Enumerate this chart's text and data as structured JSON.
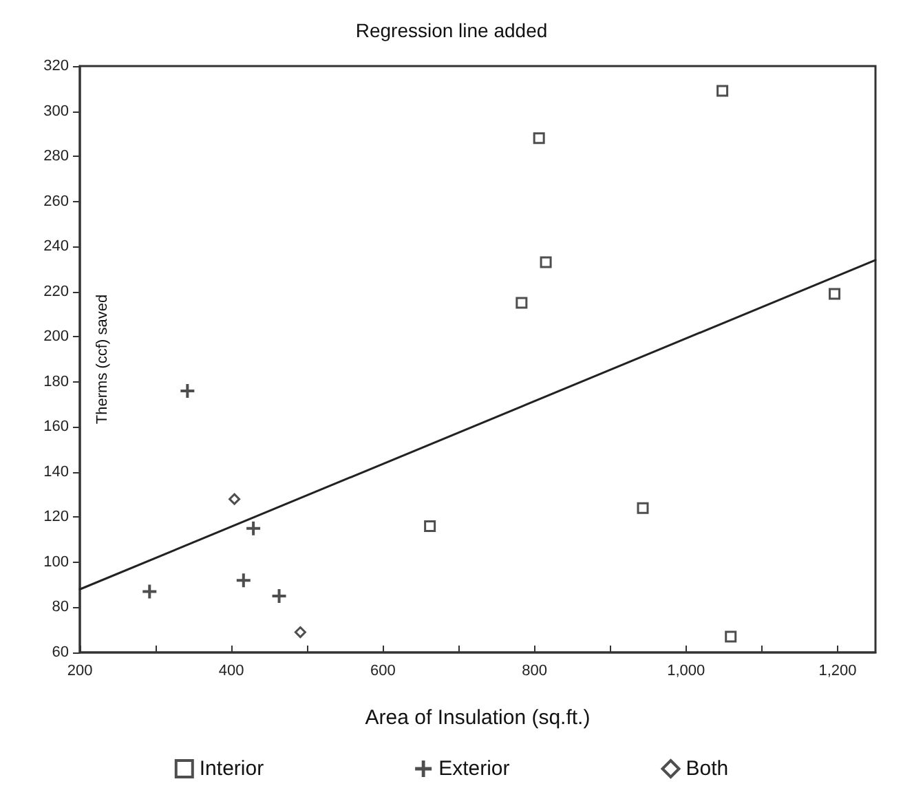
{
  "chart_data": {
    "type": "scatter",
    "subtitle": "Regression line added",
    "xlabel": "Area of Insulation (sq.ft.)",
    "ylabel": "Therms (ccf) saved",
    "xlim": [
      200,
      1250
    ],
    "xticks": [
      200,
      {
        "value": 300,
        "label": null
      },
      400,
      {
        "value": 500,
        "label": null
      },
      600,
      {
        "value": 700,
        "label": null
      },
      800,
      {
        "value": 900,
        "label": null
      },
      {
        "value": 1000,
        "label": "1,000"
      },
      {
        "value": 1100,
        "label": null
      },
      {
        "value": 1200,
        "label": "1,200"
      }
    ],
    "ylim": [
      60,
      320
    ],
    "yticks": [
      60,
      80,
      100,
      120,
      140,
      160,
      180,
      200,
      220,
      240,
      260,
      280,
      300,
      320
    ],
    "grid": false,
    "legend": "bottom",
    "series": [
      {
        "name": "Interior",
        "color": "#222222",
        "marker": "square",
        "x": [
          662,
          806,
          815,
          783,
          1048,
          1196,
          943,
          1059
        ],
        "values": [
          116,
          288,
          233,
          215,
          309,
          219,
          124,
          67
        ]
      },
      {
        "name": "Exterior",
        "color": "#222222",
        "marker": "cross",
        "x": [
          342,
          292,
          429,
          416,
          463
        ],
        "values": [
          176,
          87,
          115,
          92,
          85
        ]
      },
      {
        "name": "Both",
        "color": "#222222",
        "marker": "diamond",
        "x": [
          404,
          491
        ],
        "values": [
          128,
          69
        ]
      },
      {
        "type": "line",
        "color": "#222222",
        "marker": "none",
        "line_style": "solid",
        "x": [
          200,
          1250
        ],
        "values": [
          88,
          234
        ]
      }
    ]
  }
}
